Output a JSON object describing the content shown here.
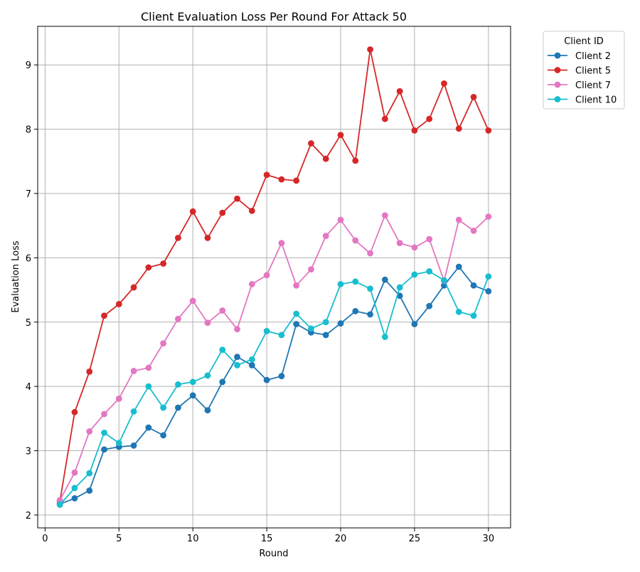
{
  "chart_data": {
    "type": "line",
    "title": "Client Evaluation Loss Per Round For Attack 50",
    "xlabel": "Round",
    "ylabel": "Evaluation Loss",
    "xlim": [
      -0.5,
      31.5
    ],
    "ylim": [
      1.8,
      9.6
    ],
    "xticks": [
      0,
      5,
      10,
      15,
      20,
      25,
      30
    ],
    "yticks": [
      2,
      3,
      4,
      5,
      6,
      7,
      8,
      9
    ],
    "grid": true,
    "legend": {
      "title": "Client ID",
      "placement": "outside top-right"
    },
    "x": [
      1,
      2,
      3,
      4,
      5,
      6,
      7,
      8,
      9,
      10,
      11,
      12,
      13,
      14,
      15,
      16,
      17,
      18,
      19,
      20,
      21,
      22,
      23,
      24,
      25,
      26,
      27,
      28,
      29,
      30
    ],
    "series": [
      {
        "name": "Client 2",
        "color": "#1f77b4",
        "values": [
          2.17,
          2.26,
          2.38,
          3.02,
          3.06,
          3.08,
          3.36,
          3.24,
          3.67,
          3.86,
          3.63,
          4.07,
          4.46,
          4.33,
          4.1,
          4.16,
          4.97,
          4.84,
          4.8,
          4.98,
          5.17,
          5.12,
          5.66,
          5.41,
          4.97,
          5.25,
          5.57,
          5.86,
          5.57,
          5.48
        ]
      },
      {
        "name": "Client 5",
        "color": "#d62728",
        "values": [
          2.21,
          3.6,
          4.23,
          5.1,
          5.28,
          5.54,
          5.85,
          5.91,
          6.31,
          6.72,
          6.31,
          6.7,
          6.92,
          6.73,
          7.29,
          7.22,
          7.2,
          7.78,
          7.54,
          7.91,
          7.51,
          9.24,
          8.16,
          8.59,
          7.98,
          8.16,
          8.71,
          8.01,
          8.5,
          7.98
        ]
      },
      {
        "name": "Client 7",
        "color": "#e377c2",
        "values": [
          2.23,
          2.66,
          3.3,
          3.57,
          3.81,
          4.24,
          4.29,
          4.67,
          5.05,
          5.33,
          4.99,
          5.18,
          4.89,
          5.59,
          5.73,
          6.23,
          5.57,
          5.82,
          6.34,
          6.59,
          6.27,
          6.07,
          6.66,
          6.23,
          6.16,
          6.29,
          5.64,
          6.59,
          6.42,
          6.64
        ]
      },
      {
        "name": "Client 10",
        "color": "#17becf",
        "values": [
          2.16,
          2.42,
          2.65,
          3.28,
          3.12,
          3.61,
          4.0,
          3.67,
          4.03,
          4.07,
          4.17,
          4.57,
          4.33,
          4.42,
          4.86,
          4.8,
          5.13,
          4.9,
          5.0,
          5.59,
          5.63,
          5.52,
          4.77,
          5.54,
          5.74,
          5.79,
          5.65,
          5.16,
          5.1,
          5.71
        ]
      }
    ]
  }
}
